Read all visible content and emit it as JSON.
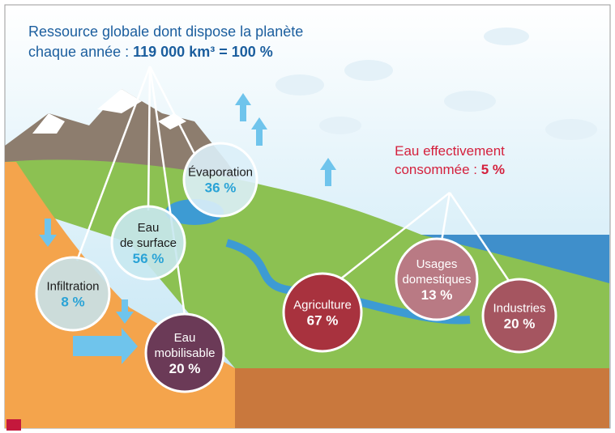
{
  "header": {
    "line1": "Ressource globale dont dispose la planète",
    "line2_prefix": "chaque année : ",
    "line2_value": "119 000 km³ = 100 %"
  },
  "consumption": {
    "line1": "Eau effectivement",
    "line2_prefix": "consommée : ",
    "line2_value": "5 %"
  },
  "nodes": [
    {
      "lines": [
        "Évaporation"
      ],
      "value": "36 %"
    },
    {
      "lines": [
        "Eau",
        "de surface"
      ],
      "value": "56 %"
    },
    {
      "lines": [
        "Infiltration"
      ],
      "value": "8 %"
    },
    {
      "lines": [
        "Eau",
        "mobilisable"
      ],
      "value": "20 %"
    },
    {
      "lines": [
        "Agriculture"
      ],
      "value": "67 %"
    },
    {
      "lines": [
        "Usages",
        "domestiques"
      ],
      "value": "13 %"
    },
    {
      "lines": [
        "Industries"
      ],
      "value": "20 %"
    }
  ]
}
